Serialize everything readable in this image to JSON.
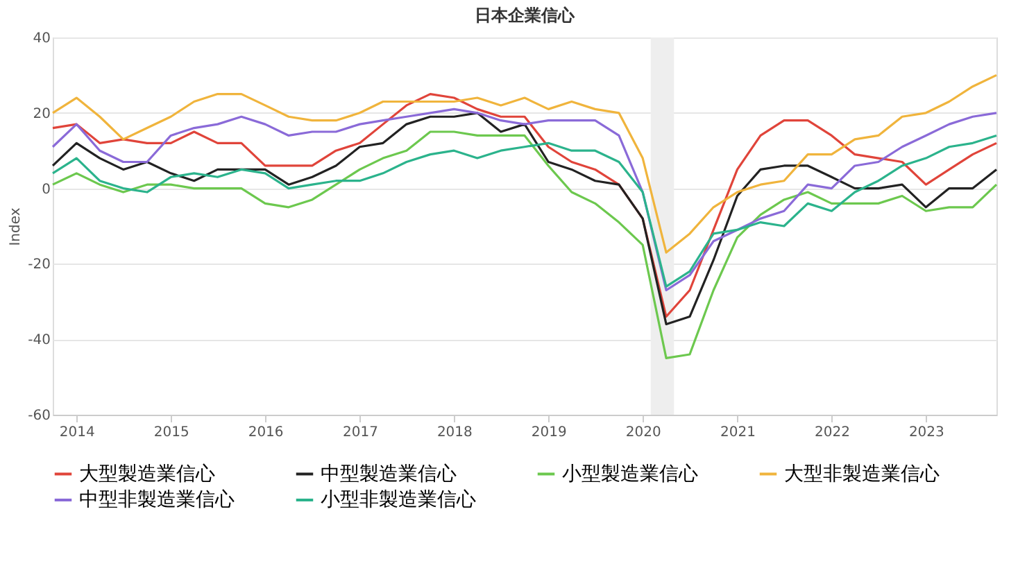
{
  "chart_data": {
    "type": "line",
    "title": "日本企業信心",
    "ylabel": "Index",
    "x": [
      "2013-10",
      "2014-01",
      "2014-04",
      "2014-07",
      "2014-10",
      "2015-01",
      "2015-04",
      "2015-07",
      "2015-10",
      "2016-01",
      "2016-04",
      "2016-07",
      "2016-10",
      "2017-01",
      "2017-04",
      "2017-07",
      "2017-10",
      "2018-01",
      "2018-04",
      "2018-07",
      "2018-10",
      "2019-01",
      "2019-04",
      "2019-07",
      "2019-10",
      "2020-01",
      "2020-04",
      "2020-07",
      "2020-10",
      "2021-01",
      "2021-04",
      "2021-07",
      "2021-10",
      "2022-01",
      "2022-04",
      "2022-07",
      "2022-10",
      "2023-01",
      "2023-04",
      "2023-07",
      "2023-10"
    ],
    "series": [
      {
        "name": "大型製造業信心",
        "color": "#e0443a",
        "values": [
          16,
          17,
          12,
          13,
          12,
          12,
          15,
          12,
          12,
          6,
          6,
          6,
          10,
          12,
          17,
          22,
          25,
          24,
          21,
          19,
          19,
          11,
          7,
          5,
          1,
          -8,
          -34,
          -27,
          -11,
          5,
          14,
          18,
          18,
          14,
          9,
          8,
          7,
          1,
          5,
          9,
          12
        ]
      },
      {
        "name": "中型製造業信心",
        "color": "#222222",
        "values": [
          6,
          12,
          8,
          5,
          7,
          4,
          2,
          5,
          5,
          5,
          1,
          3,
          6,
          11,
          12,
          17,
          19,
          19,
          20,
          15,
          17,
          7,
          5,
          2,
          1,
          -8,
          -36,
          -34,
          -19,
          -2,
          5,
          6,
          6,
          3,
          0,
          0,
          1,
          -5,
          0,
          0,
          5
        ]
      },
      {
        "name": "小型製造業信心",
        "color": "#6cc84e",
        "values": [
          1,
          4,
          1,
          -1,
          1,
          1,
          0,
          0,
          0,
          -4,
          -5,
          -3,
          1,
          5,
          8,
          10,
          15,
          15,
          14,
          14,
          14,
          6,
          -1,
          -4,
          -9,
          -15,
          -45,
          -44,
          -27,
          -13,
          -7,
          -3,
          -1,
          -4,
          -4,
          -4,
          -2,
          -6,
          -5,
          -5,
          1
        ]
      },
      {
        "name": "大型非製造業信心",
        "color": "#f0b43c",
        "values": [
          20,
          24,
          19,
          13,
          16,
          19,
          23,
          25,
          25,
          22,
          19,
          18,
          18,
          20,
          23,
          23,
          23,
          23,
          24,
          22,
          24,
          21,
          23,
          21,
          20,
          8,
          -17,
          -12,
          -5,
          -1,
          1,
          2,
          9,
          9,
          13,
          14,
          19,
          20,
          23,
          27,
          30
        ]
      },
      {
        "name": "中型非製造業信心",
        "color": "#8a6ad8",
        "values": [
          11,
          17,
          10,
          7,
          7,
          14,
          16,
          17,
          19,
          17,
          14,
          15,
          15,
          17,
          18,
          19,
          20,
          21,
          20,
          18,
          17,
          18,
          18,
          18,
          14,
          -1,
          -27,
          -23,
          -14,
          -11,
          -8,
          -6,
          1,
          0,
          6,
          7,
          11,
          14,
          17,
          19,
          20
        ]
      },
      {
        "name": "小型非製造業信心",
        "color": "#2bb38c",
        "values": [
          4,
          8,
          2,
          0,
          -1,
          3,
          4,
          3,
          5,
          4,
          0,
          1,
          2,
          2,
          4,
          7,
          9,
          10,
          8,
          10,
          11,
          12,
          10,
          10,
          7,
          -1,
          -26,
          -22,
          -12,
          -11,
          -9,
          -10,
          -4,
          -6,
          -1,
          2,
          6,
          8,
          11,
          12,
          14
        ]
      }
    ],
    "xlim": [
      "2013-10",
      "2023-10"
    ],
    "xticks": [
      "2014",
      "2015",
      "2016",
      "2017",
      "2018",
      "2019",
      "2020",
      "2021",
      "2022",
      "2023"
    ],
    "ylim": [
      -60,
      40
    ],
    "yticks": [
      -60,
      -40,
      -20,
      0,
      20,
      40
    ],
    "bands": [
      {
        "axis": "x",
        "from": "2020-02",
        "to": "2020-05",
        "label": null,
        "color": "#eeeeee"
      }
    ],
    "grid": "y",
    "legend": "bottom",
    "marker": "none",
    "line_style": "solid"
  }
}
